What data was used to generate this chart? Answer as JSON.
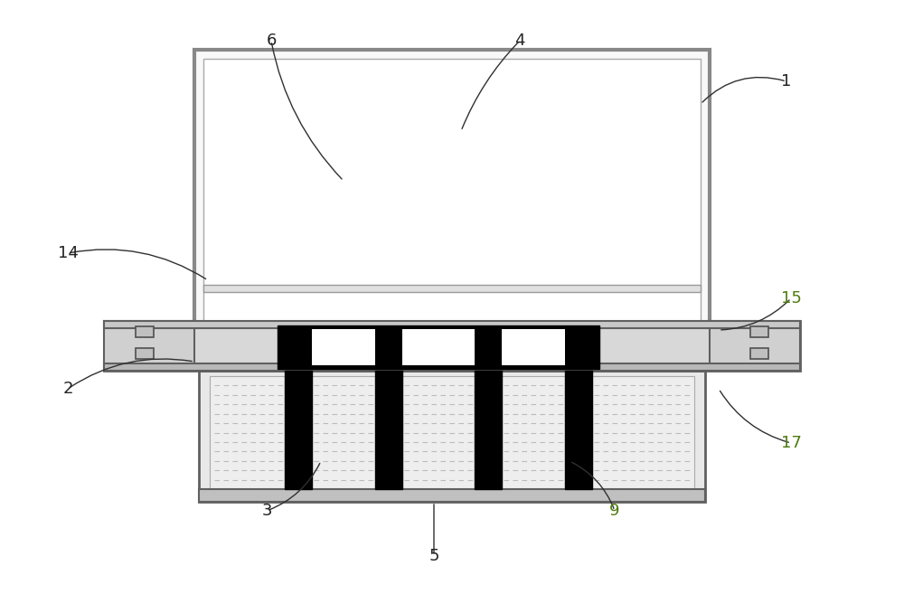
{
  "bg_color": "#ffffff",
  "line_color": "#404040",
  "black_fill": "#000000",
  "light_gray_fill": "#e8e8e8",
  "medium_gray_fill": "#c8c8c8",
  "dark_gray_fill": "#909090",
  "box_outline": "#606060",
  "fig_width": 10.0,
  "fig_height": 6.57,
  "label_color": "#222222",
  "highlight_labels": [
    "9",
    "15",
    "17"
  ],
  "label_color_highlight": "#4d7c0f"
}
